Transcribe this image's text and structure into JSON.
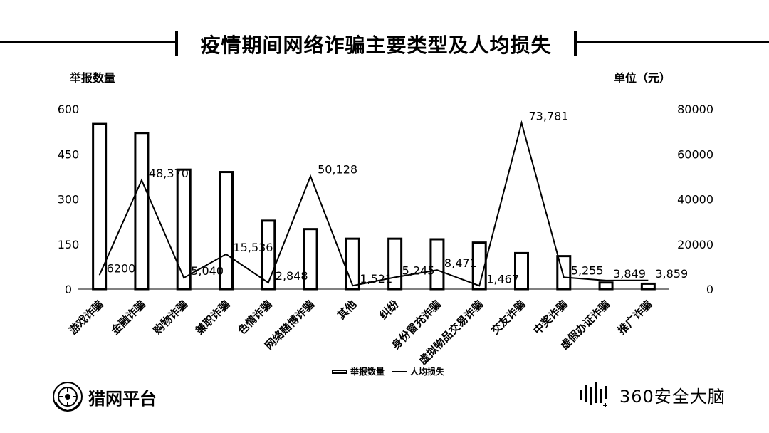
{
  "logos": {
    "left_text": "猎网平台",
    "right_text": "360安全大脑"
  },
  "chart_data": {
    "type": "bar",
    "title": "疫情期间网络诈骗主要类型及人均损失",
    "ylabel_left": "举报数量",
    "ylabel_right": "单位（元）",
    "ylim_left": [
      0,
      600
    ],
    "ylim_right": [
      0,
      80000
    ],
    "yticks_left": [
      "0",
      "150",
      "300",
      "450",
      "600"
    ],
    "yticks_right": [
      "0",
      "20000",
      "40000",
      "60000",
      "80000"
    ],
    "grid": false,
    "legend_position": "bottom",
    "categories": [
      "游戏诈骗",
      "金融诈骗",
      "购物诈骗",
      "兼职诈骗",
      "色情诈骗",
      "网络赌博诈骗",
      "其他",
      "纠纷",
      "身份冒充诈骗",
      "虚拟物品交易诈骗",
      "交友诈骗",
      "中奖诈骗",
      "虚假办证诈骗",
      "推广诈骗"
    ],
    "series": [
      {
        "name": "举报数量",
        "type": "bar",
        "axis": "left",
        "values": [
          550,
          520,
          398,
          390,
          228,
          200,
          168,
          168,
          166,
          155,
          120,
          110,
          22,
          18
        ]
      },
      {
        "name": "人均损失",
        "type": "line",
        "axis": "right",
        "values": [
          6200,
          48370,
          5040,
          15536,
          2848,
          50128,
          1521,
          5245,
          8471,
          1467,
          73781,
          5255,
          3849,
          3859
        ],
        "labels": [
          "6200",
          "48,370",
          "5,040",
          "15,536",
          "2,848",
          "50,128",
          "1,521",
          "5,245",
          "8,471",
          "1,467",
          "73,781",
          "5,255",
          "3,849",
          "3,859"
        ]
      }
    ]
  },
  "colors": {
    "bar_fill": "#ffffff",
    "bar_stroke": "#000000",
    "line": "#000000",
    "text": "#000000"
  }
}
